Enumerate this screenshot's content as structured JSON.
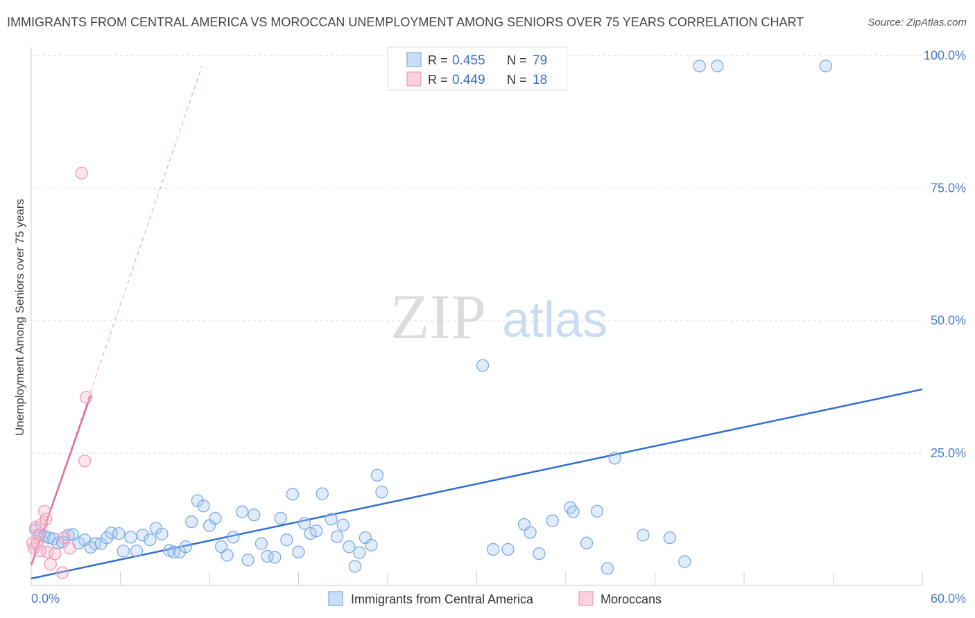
{
  "title": "IMMIGRANTS FROM CENTRAL AMERICA VS MOROCCAN UNEMPLOYMENT AMONG SENIORS OVER 75 YEARS CORRELATION CHART",
  "source": "Source: ZipAtlas.com",
  "watermark": {
    "zip": "ZIP",
    "atlas": "atlas"
  },
  "colors": {
    "blue": "#7aaae6",
    "blue_fill": "rgba(170,200,240,0.35)",
    "blue_line": "#2f6fd0",
    "pink": "#ee9ab5",
    "pink_fill": "rgba(245,180,200,0.35)",
    "pink_line": "#e0709a",
    "grid": "#dddddd",
    "tick_text": "#4a7cc7"
  },
  "legend": {
    "r_label": "R =",
    "n_label": "N =",
    "rows": [
      {
        "r": "0.455",
        "n": "79",
        "color": "blue"
      },
      {
        "r": "0.449",
        "n": "18",
        "color": "pink"
      }
    ]
  },
  "bottom_legend": [
    {
      "label": "Immigrants from Central America",
      "color": "blue"
    },
    {
      "label": "Moroccans",
      "color": "pink"
    }
  ],
  "chart_data": {
    "type": "scatter",
    "title": "IMMIGRANTS FROM CENTRAL AMERICA VS MOROCCAN UNEMPLOYMENT AMONG SENIORS OVER 75 YEARS CORRELATION CHART",
    "xlabel": "",
    "ylabel": "Unemployment Among Seniors over 75 years",
    "xlim": [
      0,
      60
    ],
    "ylim": [
      0,
      100
    ],
    "x_tick_labels": [
      "0.0%",
      "60.0%"
    ],
    "y_ticks": [
      25,
      50,
      75,
      100
    ],
    "y_tick_labels": [
      "25.0%",
      "50.0%",
      "75.0%",
      "100.0%"
    ],
    "grid": true,
    "legend_position": "top-center",
    "series": [
      {
        "name": "Immigrants from Central America",
        "color": "blue",
        "points": [
          [
            0.3,
            10.5
          ],
          [
            0.6,
            9.5
          ],
          [
            0.9,
            9.3
          ],
          [
            1.2,
            9.0
          ],
          [
            1.5,
            8.8
          ],
          [
            1.8,
            8.0
          ],
          [
            2.1,
            8.2
          ],
          [
            2.5,
            9.5
          ],
          [
            2.8,
            9.6
          ],
          [
            3.2,
            8.0
          ],
          [
            3.6,
            8.6
          ],
          [
            4.0,
            7.2
          ],
          [
            4.3,
            7.9
          ],
          [
            4.7,
            7.9
          ],
          [
            5.1,
            9.0
          ],
          [
            5.4,
            9.9
          ],
          [
            5.9,
            9.8
          ],
          [
            6.2,
            6.5
          ],
          [
            6.7,
            9.1
          ],
          [
            7.1,
            6.5
          ],
          [
            7.5,
            9.5
          ],
          [
            8.0,
            8.6
          ],
          [
            8.4,
            10.8
          ],
          [
            8.8,
            9.7
          ],
          [
            9.3,
            6.6
          ],
          [
            9.6,
            6.3
          ],
          [
            10.0,
            6.3
          ],
          [
            10.4,
            7.3
          ],
          [
            10.8,
            12.0
          ],
          [
            11.2,
            16.0
          ],
          [
            11.6,
            15.0
          ],
          [
            12.0,
            11.3
          ],
          [
            12.4,
            12.7
          ],
          [
            12.8,
            7.3
          ],
          [
            13.2,
            5.7
          ],
          [
            13.6,
            9.1
          ],
          [
            14.2,
            13.9
          ],
          [
            14.6,
            4.8
          ],
          [
            15.0,
            13.3
          ],
          [
            15.5,
            7.9
          ],
          [
            15.9,
            5.5
          ],
          [
            16.4,
            5.3
          ],
          [
            16.8,
            12.7
          ],
          [
            17.2,
            8.6
          ],
          [
            17.6,
            17.2
          ],
          [
            18.0,
            6.3
          ],
          [
            18.4,
            11.7
          ],
          [
            18.8,
            9.8
          ],
          [
            19.2,
            10.3
          ],
          [
            19.6,
            17.3
          ],
          [
            20.2,
            12.5
          ],
          [
            20.6,
            9.2
          ],
          [
            21.0,
            11.4
          ],
          [
            21.4,
            7.3
          ],
          [
            21.8,
            3.6
          ],
          [
            22.1,
            6.2
          ],
          [
            22.5,
            9.0
          ],
          [
            22.9,
            7.6
          ],
          [
            23.3,
            20.8
          ],
          [
            23.6,
            17.6
          ],
          [
            30.4,
            41.5
          ],
          [
            31.1,
            6.8
          ],
          [
            32.1,
            6.8
          ],
          [
            33.2,
            11.5
          ],
          [
            33.6,
            10.0
          ],
          [
            34.2,
            6.0
          ],
          [
            35.1,
            12.2
          ],
          [
            36.3,
            14.7
          ],
          [
            36.5,
            13.9
          ],
          [
            37.4,
            8.0
          ],
          [
            38.1,
            14.0
          ],
          [
            38.8,
            3.2
          ],
          [
            39.3,
            24.0
          ],
          [
            41.2,
            9.5
          ],
          [
            43.0,
            9.0
          ],
          [
            44.0,
            4.5
          ],
          [
            45.0,
            98.0
          ],
          [
            46.2,
            98.0
          ],
          [
            53.5,
            98.0
          ]
        ],
        "trend": [
          [
            0,
            0
          ],
          [
            60,
            37.0
          ]
        ]
      },
      {
        "name": "Moroccans",
        "color": "pink",
        "points": [
          [
            0.1,
            8.0
          ],
          [
            0.2,
            7.0
          ],
          [
            0.3,
            11.0
          ],
          [
            0.4,
            8.0
          ],
          [
            0.5,
            9.5
          ],
          [
            0.6,
            6.5
          ],
          [
            0.7,
            11.5
          ],
          [
            0.9,
            14.0
          ],
          [
            1.0,
            12.5
          ],
          [
            1.1,
            6.3
          ],
          [
            1.3,
            4.0
          ],
          [
            1.6,
            6.0
          ],
          [
            2.1,
            2.4
          ],
          [
            2.2,
            9.0
          ],
          [
            2.6,
            7.0
          ],
          [
            3.4,
            77.8
          ],
          [
            3.6,
            23.5
          ],
          [
            3.7,
            35.5
          ]
        ],
        "trend": [
          [
            0,
            3.8
          ],
          [
            4.0,
            35.8
          ]
        ],
        "trend_extended": [
          [
            0,
            3.8
          ],
          [
            11.5,
            98.0
          ]
        ]
      }
    ]
  }
}
